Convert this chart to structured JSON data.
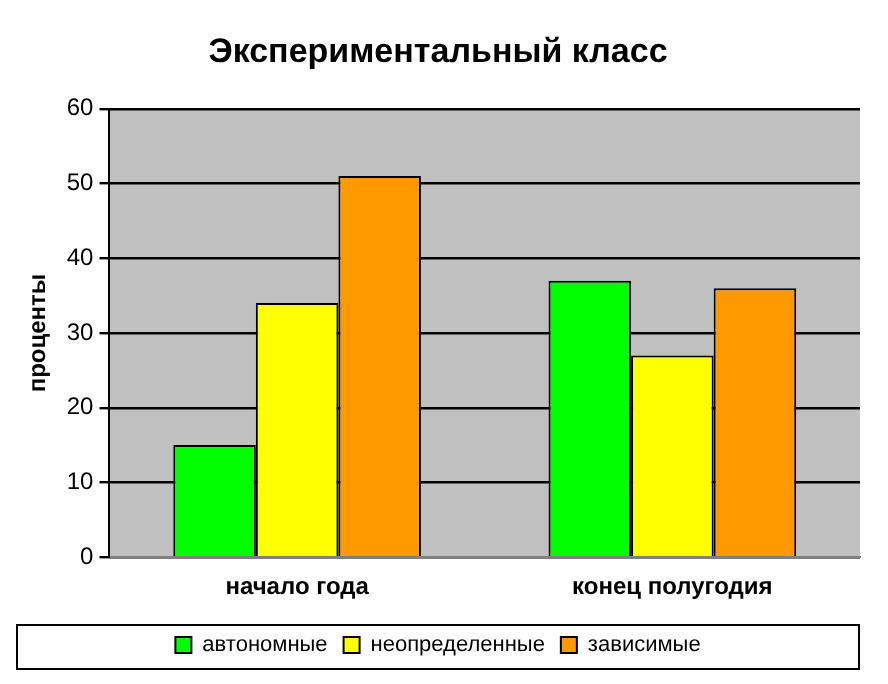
{
  "chart_data": {
    "type": "bar",
    "title": "Экспериментальный класс",
    "ylabel": "проценты",
    "categories": [
      "начало года",
      "конец полугодия"
    ],
    "series": [
      {
        "name": "автономные",
        "color": "#00ff00",
        "values": [
          15,
          37
        ]
      },
      {
        "name": "неопределенные",
        "color": "#ffff00",
        "values": [
          34,
          27
        ]
      },
      {
        "name": "зависимые",
        "color": "#ff9900",
        "values": [
          51,
          36
        ]
      }
    ],
    "ylim": [
      0,
      60
    ],
    "yticks": [
      0,
      10,
      20,
      30,
      40,
      50,
      60
    ],
    "grid": "y",
    "legend": "bottom"
  }
}
